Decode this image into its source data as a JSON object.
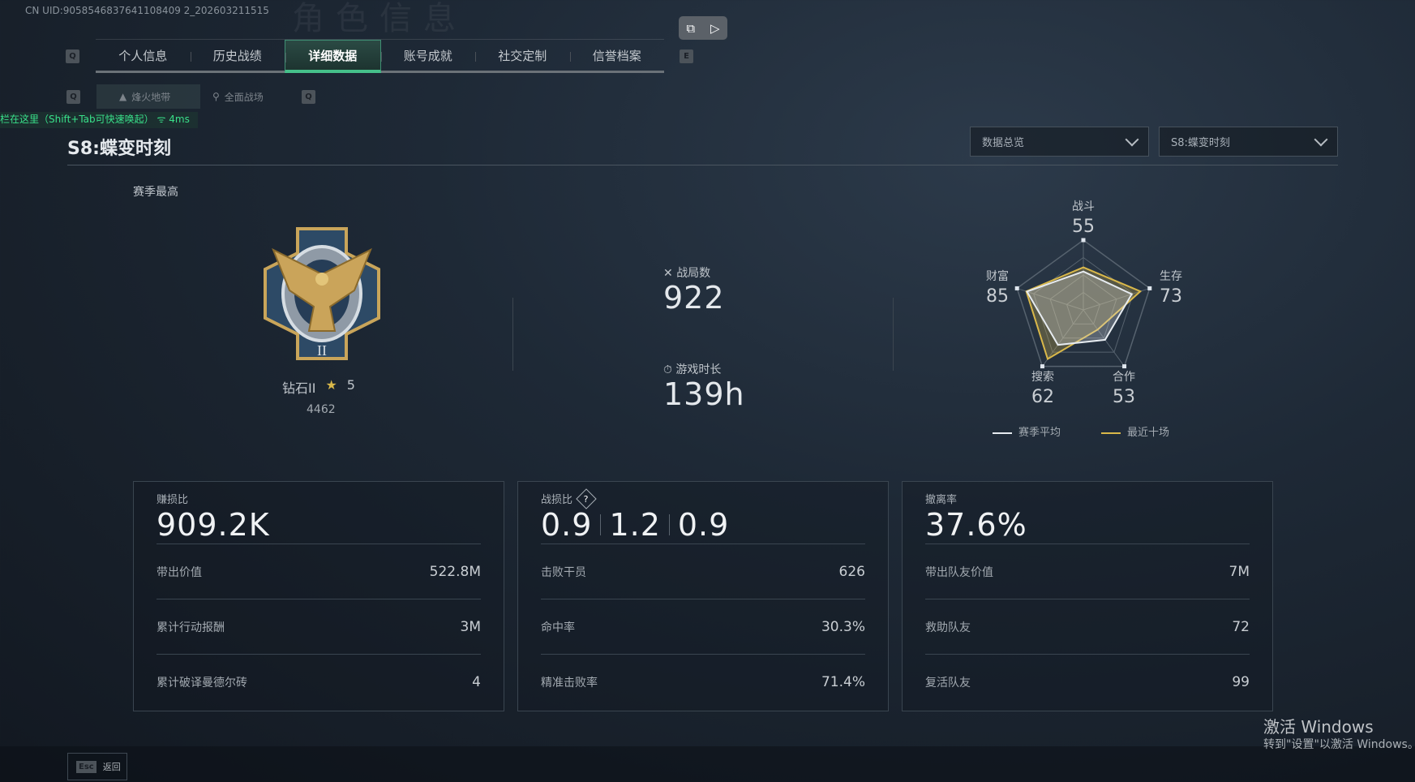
{
  "uid": "CN UID:9058546837641108409 2_202603211515",
  "bg_title": "角色信息",
  "tabs": {
    "prev_key": "Q",
    "next_key": "E",
    "items": [
      {
        "label": "个人信息"
      },
      {
        "label": "历史战绩"
      },
      {
        "label": "详细数据",
        "active": true
      },
      {
        "label": "账号成就"
      },
      {
        "label": "社交定制"
      },
      {
        "label": "信誉档案"
      }
    ]
  },
  "subtabs": {
    "prev_key": "Q",
    "next_key": "Q",
    "items": [
      {
        "label": "烽火地带",
        "active": true
      },
      {
        "label": "全面战场"
      }
    ]
  },
  "overlay": {
    "text": "栏在这里（Shift+Tab可快速唤起）",
    "ping": "4ms",
    "color": "#39e08a"
  },
  "season_title": "S8:蝶变时刻",
  "dropdowns": [
    {
      "value": "数据总览"
    },
    {
      "value": "S8:蝶变时刻"
    }
  ],
  "rank": {
    "heading": "赛季最高",
    "name": "钻石II",
    "stars": "5",
    "score": "4462",
    "badge_numeral": "II"
  },
  "stats": {
    "matches_label": "战局数",
    "matches": "922",
    "time_label": "游戏时长",
    "time": "139h"
  },
  "chart_data": {
    "type": "radar",
    "axes": [
      "战斗",
      "生存",
      "合作",
      "搜索",
      "财富"
    ],
    "axis_values": [
      "55",
      "73",
      "53",
      "62",
      "85"
    ],
    "range": [
      0,
      100
    ],
    "series": [
      {
        "name": "赛季平均",
        "values": [
          55,
          73,
          53,
          62,
          85
        ],
        "color": "#e6ebf0"
      },
      {
        "name": "最近十场",
        "values": [
          61,
          86,
          35,
          87,
          86
        ],
        "color": "#d9b84a"
      }
    ]
  },
  "panels": [
    {
      "label": "赚损比",
      "big": [
        "909.2K"
      ],
      "rows": [
        {
          "k": "带出价值",
          "v": "522.8M"
        },
        {
          "k": "累计行动报酬",
          "v": "3M"
        },
        {
          "k": "累计破译曼德尔砖",
          "v": "4"
        }
      ]
    },
    {
      "label": "战损比",
      "help": "?",
      "big": [
        "0.9",
        "1.2",
        "0.9"
      ],
      "rows": [
        {
          "k": "击败干员",
          "v": "626"
        },
        {
          "k": "命中率",
          "v": "30.3%"
        },
        {
          "k": "精准击败率",
          "v": "71.4%"
        }
      ]
    },
    {
      "label": "撤离率",
      "big": [
        "37.6%"
      ],
      "rows": [
        {
          "k": "带出队友价值",
          "v": "7M"
        },
        {
          "k": "救助队友",
          "v": "72"
        },
        {
          "k": "复活队友",
          "v": "99"
        }
      ]
    }
  ],
  "back": {
    "key": "Esc",
    "label": "返回"
  },
  "watermark": {
    "line1": "激活 Windows",
    "line2": "转到\"设置\"以激活 Windows。"
  }
}
